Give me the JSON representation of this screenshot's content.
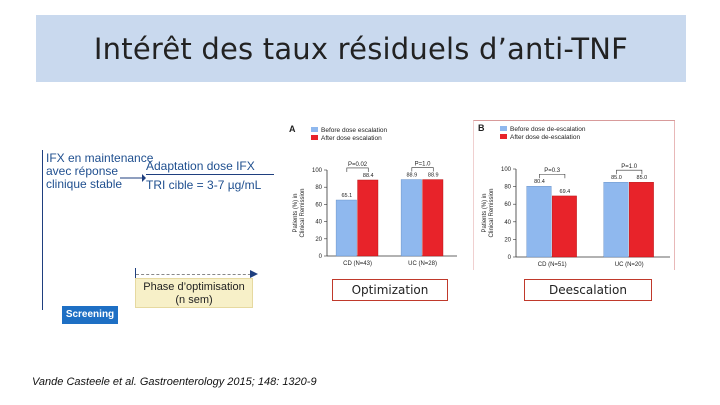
{
  "title": "Intérêt des taux résiduels d’anti-TNF",
  "diagram": {
    "left_text": [
      "IFX en maintenance",
      "avec réponse",
      "clinique stable"
    ],
    "top_label": "Adaptation dose IFX",
    "target_label": "TRI cible = 3-7 µg/mL",
    "phase_label": [
      "Phase d’optimisation",
      "(n sem)"
    ],
    "screening_label": "Screening"
  },
  "chart_data": [
    {
      "type": "bar",
      "panel_label": "A",
      "legend": [
        "Before dose escalation",
        "After dose escalation"
      ],
      "categories": [
        "CD (N=43)",
        "UC (N=28)"
      ],
      "series": [
        {
          "name": "Before dose escalation",
          "values": [
            65.1,
            88.9
          ],
          "color": "#8fb8ee"
        },
        {
          "name": "After dose escalation",
          "values": [
            88.4,
            88.9
          ],
          "color": "#e8232a"
        }
      ],
      "value_labels": [
        [
          "65.1",
          "88.4"
        ],
        [
          "88.9",
          "88.9"
        ]
      ],
      "p_values": [
        "P=0.02",
        "P=1.0"
      ],
      "ylabel": [
        "Patients (%) in",
        "Clinical Remission"
      ],
      "yticks": [
        0,
        20,
        40,
        60,
        80,
        100
      ],
      "ylim": [
        0,
        100
      ]
    },
    {
      "type": "bar",
      "panel_label": "B",
      "legend": [
        "Before dose de-escalation",
        "After dose de-escalation"
      ],
      "categories": [
        "CD (N=51)",
        "UC (N=20)"
      ],
      "series": [
        {
          "name": "Before dose de-escalation",
          "values": [
            80.4,
            85.0
          ],
          "color": "#8fb8ee"
        },
        {
          "name": "After dose de-escalation",
          "values": [
            69.4,
            85.0
          ],
          "color": "#e8232a"
        }
      ],
      "value_labels": [
        [
          "80.4",
          "69.4"
        ],
        [
          "85.0",
          "85.0"
        ]
      ],
      "p_values": [
        "P=0.3",
        "P=1.0"
      ],
      "ylabel": [
        "Patients (%) in",
        "Clinical Remission"
      ],
      "yticks": [
        0,
        20,
        40,
        60,
        80,
        100
      ],
      "ylim": [
        0,
        100
      ]
    }
  ],
  "labels": {
    "optimization": "Optimization",
    "deescalation": "Deescalation"
  },
  "citation": "Vande Casteele et al. Gastroenterology 2015; 148: 1320-9"
}
